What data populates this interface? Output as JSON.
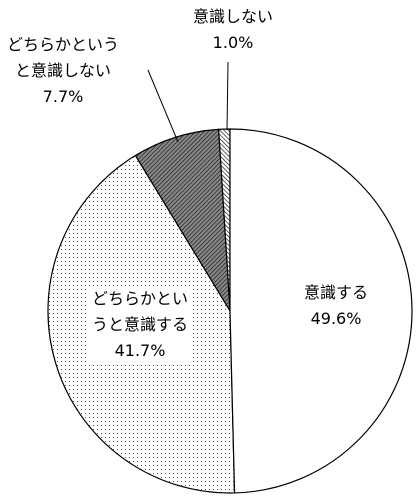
{
  "chart_data": {
    "type": "pie",
    "categories": [
      "意識する",
      "どちらかというと意識する",
      "どちらかというと意識しない",
      "意識しない"
    ],
    "values": [
      49.6,
      41.7,
      7.7,
      1.0
    ],
    "value_labels": [
      "49.6%",
      "41.7%",
      "7.7%",
      "1.0%"
    ]
  }
}
